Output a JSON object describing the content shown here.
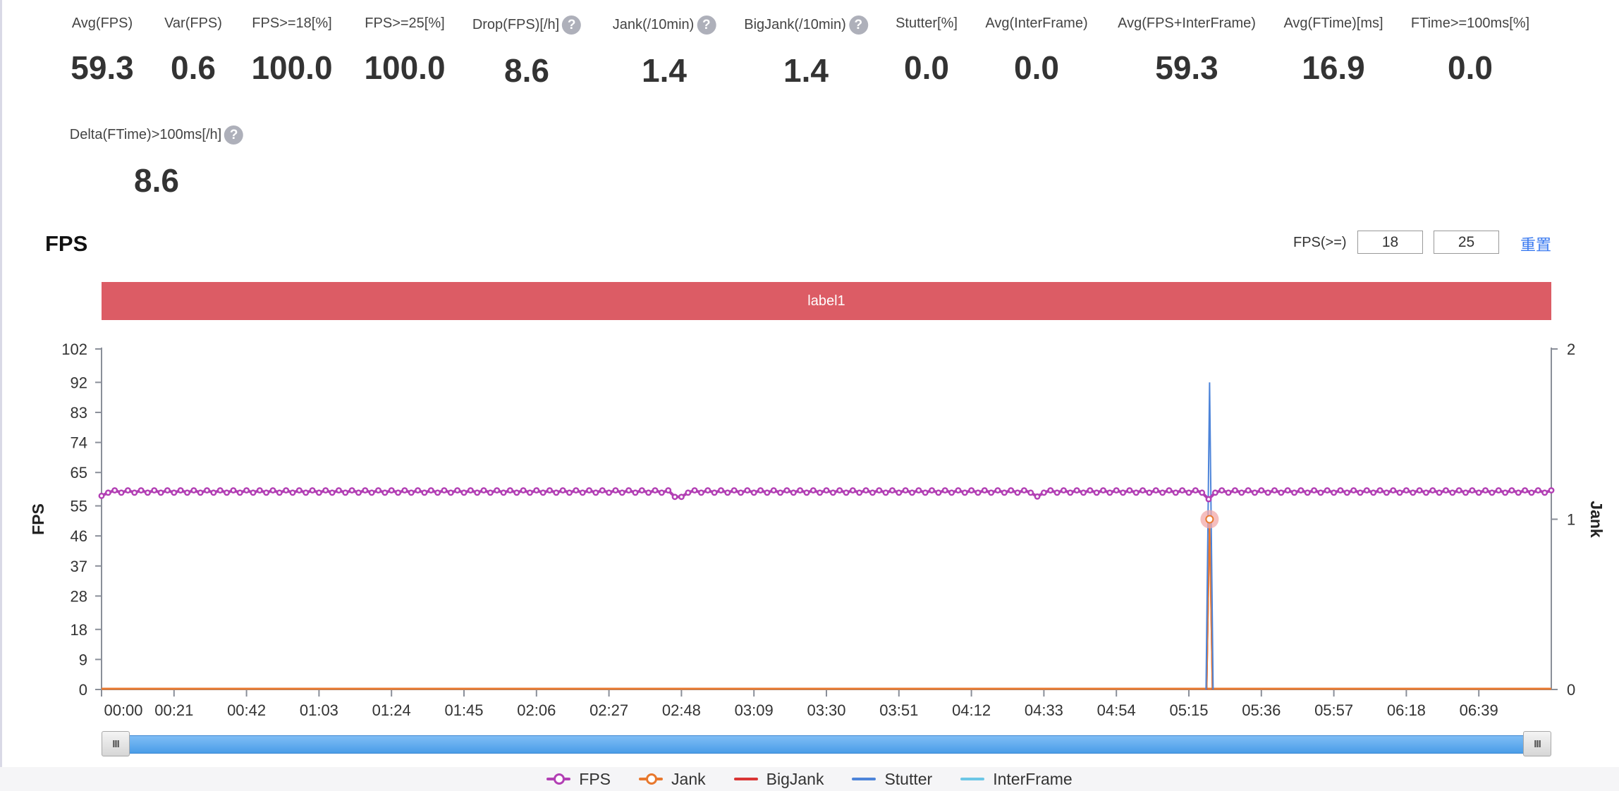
{
  "metrics": [
    {
      "label": "Avg(FPS)",
      "value": "59.3",
      "help": false
    },
    {
      "label": "Var(FPS)",
      "value": "0.6",
      "help": false
    },
    {
      "label": "FPS>=18[%]",
      "value": "100.0",
      "help": false
    },
    {
      "label": "FPS>=25[%]",
      "value": "100.0",
      "help": false
    },
    {
      "label": "Drop(FPS)[/h]",
      "value": "8.6",
      "help": true
    },
    {
      "label": "Jank(/10min)",
      "value": "1.4",
      "help": true
    },
    {
      "label": "BigJank(/10min)",
      "value": "1.4",
      "help": true
    },
    {
      "label": "Stutter[%]",
      "value": "0.0",
      "help": false
    },
    {
      "label": "Avg(InterFrame)",
      "value": "0.0",
      "help": false
    },
    {
      "label": "Avg(FPS+InterFrame)",
      "value": "59.3",
      "help": false
    },
    {
      "label": "Avg(FTime)[ms]",
      "value": "16.9",
      "help": false
    },
    {
      "label": "FTime>=100ms[%]",
      "value": "0.0",
      "help": false
    },
    {
      "label": "Delta(FTime)>100ms[/h]",
      "value": "8.6",
      "help": true
    }
  ],
  "help_glyph": "?",
  "chart_header": {
    "title": "FPS",
    "threshold_label": "FPS(>=)",
    "threshold_1": "18",
    "threshold_2": "25",
    "reset_label": "重置"
  },
  "label_band": "label1",
  "slider": {
    "handle_glyph": "III",
    "range_start": 0,
    "range_end": 1
  },
  "chart_data": {
    "type": "line",
    "title": "FPS",
    "xlabel": "",
    "ylabel": "FPS",
    "y2label": "Jank",
    "x_ticks": [
      "00:00",
      "00:21",
      "00:42",
      "01:03",
      "01:24",
      "01:45",
      "02:06",
      "02:27",
      "02:48",
      "03:09",
      "03:30",
      "03:51",
      "04:12",
      "04:33",
      "04:54",
      "05:15",
      "05:36",
      "05:57",
      "06:18",
      "06:39"
    ],
    "x_range": [
      "00:00",
      "07:00"
    ],
    "y_ticks": [
      0,
      9,
      18,
      28,
      37,
      46,
      55,
      65,
      74,
      83,
      92,
      102
    ],
    "ylim": [
      0,
      102
    ],
    "y2_ticks": [
      0,
      1,
      2
    ],
    "y2lim": [
      0,
      2
    ],
    "grid": false,
    "legend_position": "bottom",
    "series": [
      {
        "name": "FPS",
        "axis": "left",
        "color": "#b23fb4",
        "marker": "circle",
        "base_value": 59.3,
        "oscillation": 0.7,
        "dips": [
          {
            "time": "00:00",
            "value": 58.0
          },
          {
            "time": "02:47",
            "value": 57.7
          },
          {
            "time": "04:31",
            "value": 57.8
          },
          {
            "time": "05:20",
            "value": 57.0
          }
        ]
      },
      {
        "name": "Jank",
        "axis": "right",
        "color": "#e8782e",
        "marker": "circle",
        "base_value": 0,
        "events": [
          {
            "time": "05:21",
            "value": 1
          }
        ]
      },
      {
        "name": "BigJank",
        "axis": "right",
        "color": "#d93535",
        "marker": "none",
        "base_value": 0,
        "events": [
          {
            "time": "05:21",
            "value": 1
          }
        ]
      },
      {
        "name": "Stutter",
        "axis": "left",
        "color": "#4d84d9",
        "marker": "none",
        "base_value": 0,
        "events": [
          {
            "time": "05:21",
            "value": 92
          }
        ]
      },
      {
        "name": "InterFrame",
        "axis": "left",
        "color": "#6cc6e6",
        "marker": "none",
        "base_value": 0,
        "events": []
      }
    ],
    "highlight_point": {
      "series": "Jank",
      "time": "05:21",
      "value": 1,
      "color": "#f2a8a8"
    }
  }
}
